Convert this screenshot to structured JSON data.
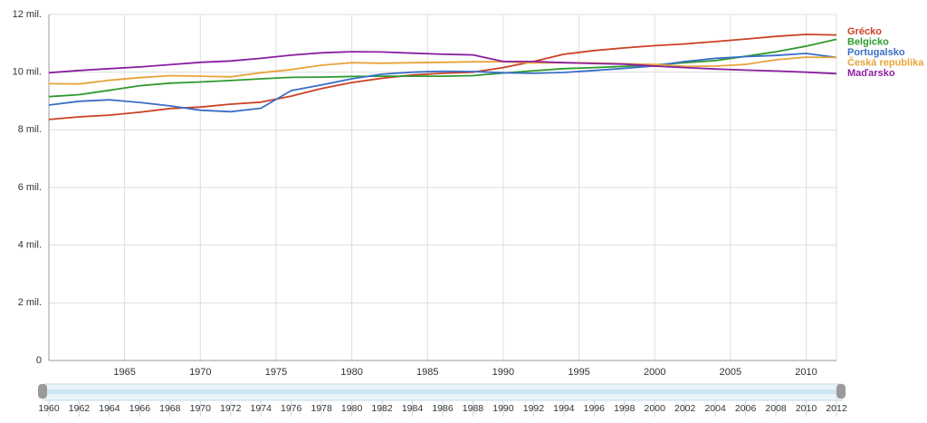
{
  "chart_data": {
    "type": "line",
    "x": [
      1960,
      1962,
      1964,
      1966,
      1968,
      1970,
      1972,
      1974,
      1976,
      1978,
      1980,
      1982,
      1984,
      1986,
      1988,
      1990,
      1992,
      1994,
      1996,
      1998,
      2000,
      2002,
      2004,
      2006,
      2008,
      2010,
      2012
    ],
    "series": [
      {
        "name": "Grécko",
        "color": "#cc4125",
        "values": [
          8.36,
          8.45,
          8.51,
          8.61,
          8.74,
          8.79,
          8.89,
          8.96,
          9.17,
          9.43,
          9.64,
          9.79,
          9.9,
          9.96,
          10.0,
          10.16,
          10.37,
          10.62,
          10.75,
          10.84,
          10.92,
          10.98,
          11.06,
          11.15,
          11.24,
          11.31,
          11.29
        ]
      },
      {
        "name": "Belgicko",
        "color": "#2e9a2e",
        "values": [
          9.15,
          9.22,
          9.37,
          9.53,
          9.62,
          9.66,
          9.71,
          9.77,
          9.82,
          9.83,
          9.85,
          9.86,
          9.86,
          9.86,
          9.88,
          9.97,
          10.05,
          10.12,
          10.16,
          10.2,
          10.25,
          10.33,
          10.4,
          10.55,
          10.71,
          10.9,
          11.14
        ]
      },
      {
        "name": "Portugalsko",
        "color": "#3a6ec6",
        "values": [
          8.86,
          8.99,
          9.04,
          8.95,
          8.83,
          8.68,
          8.63,
          8.75,
          9.36,
          9.56,
          9.77,
          9.93,
          10.0,
          10.03,
          10.02,
          9.98,
          9.96,
          9.99,
          10.06,
          10.13,
          10.22,
          10.37,
          10.48,
          10.54,
          10.58,
          10.65,
          10.51
        ]
      },
      {
        "name": "Česká republika",
        "color": "#e8a33a",
        "values": [
          9.6,
          9.59,
          9.72,
          9.81,
          9.88,
          9.86,
          9.84,
          9.98,
          10.09,
          10.24,
          10.33,
          10.31,
          10.33,
          10.34,
          10.36,
          10.36,
          10.32,
          10.33,
          10.32,
          10.29,
          10.27,
          10.2,
          10.21,
          10.27,
          10.43,
          10.52,
          10.51
        ]
      },
      {
        "name": "Maďarsko",
        "color": "#8b1fa0",
        "values": [
          9.98,
          10.06,
          10.12,
          10.18,
          10.26,
          10.34,
          10.39,
          10.48,
          10.59,
          10.67,
          10.71,
          10.7,
          10.66,
          10.62,
          10.6,
          10.37,
          10.37,
          10.33,
          10.3,
          10.28,
          10.21,
          10.16,
          10.11,
          10.07,
          10.04,
          10.0,
          9.95
        ]
      }
    ],
    "xlim": [
      1960,
      2012
    ],
    "xticks": [
      1965,
      1970,
      1975,
      1980,
      1985,
      1990,
      1995,
      2000,
      2005,
      2010
    ],
    "ylim": [
      0,
      12
    ],
    "yticks": [
      0,
      {
        "value": 2,
        "label": "2 mil."
      },
      {
        "value": 4,
        "label": "4 mil."
      },
      {
        "value": 6,
        "label": "6 mil."
      },
      {
        "value": 8,
        "label": "8 mil."
      },
      {
        "value": 10,
        "label": "10 mil."
      },
      {
        "value": 12,
        "label": "12 mil."
      }
    ],
    "grid": true,
    "legend": "right",
    "slider_ticks": [
      1960,
      1962,
      1964,
      1966,
      1968,
      1970,
      1972,
      1974,
      1976,
      1978,
      1980,
      1982,
      1984,
      1986,
      1988,
      1990,
      1992,
      1994,
      1996,
      1998,
      2000,
      2002,
      2004,
      2006,
      2008,
      2010,
      2012
    ]
  }
}
